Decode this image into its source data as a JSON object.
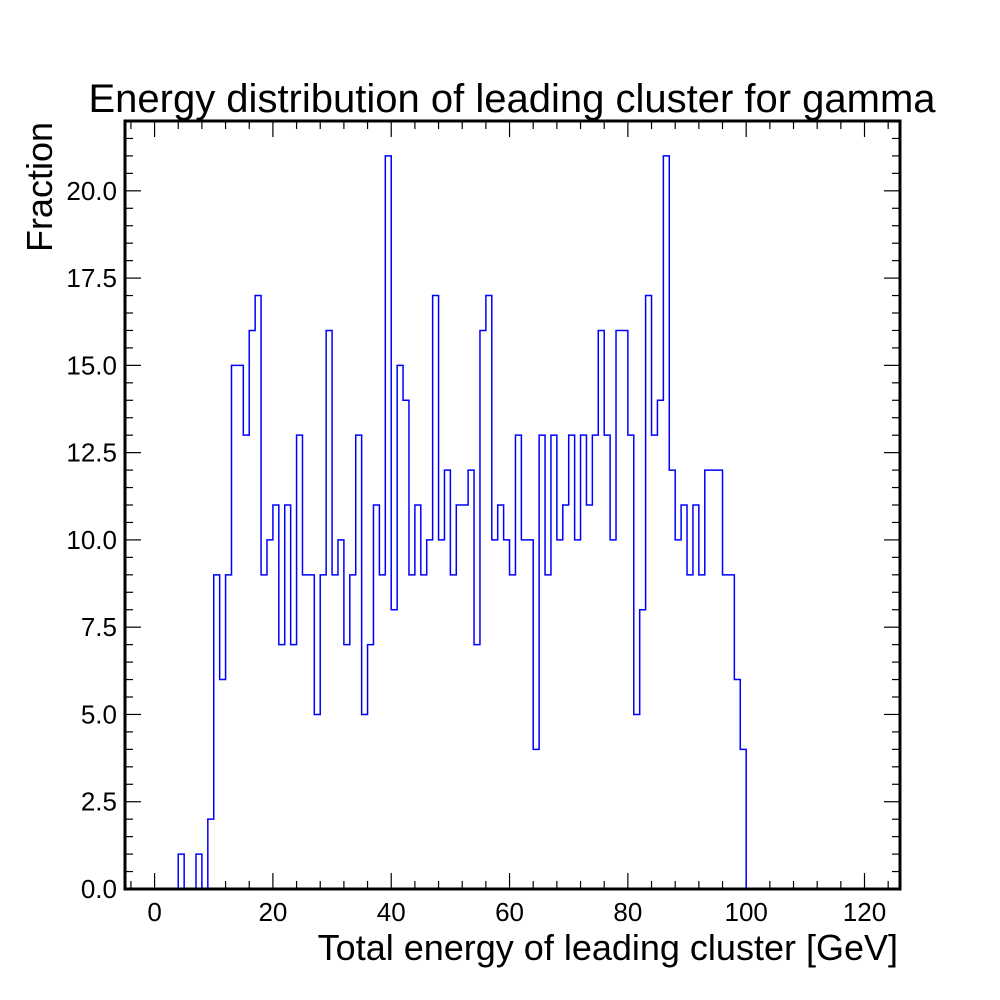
{
  "chart_data": {
    "type": "histogram",
    "title": "Energy distribution of leading cluster for gamma",
    "xlabel": "Total energy of leading cluster [GeV]",
    "ylabel": "Fraction",
    "xlim": [
      -5,
      126
    ],
    "ylim": [
      0,
      22
    ],
    "x_ticks": [
      0,
      20,
      40,
      60,
      80,
      100,
      120
    ],
    "x_tick_labels": [
      "0",
      "20",
      "40",
      "60",
      "80",
      "100",
      "120"
    ],
    "y_ticks": [
      0,
      2.5,
      5,
      7.5,
      10,
      12.5,
      15,
      17.5,
      20
    ],
    "y_tick_labels": [
      "0.0",
      "2.5",
      "5.0",
      "7.5",
      "10.0",
      "12.5",
      "15.0",
      "17.5",
      "20.0"
    ],
    "grid": false,
    "line_color": "#0000ff",
    "bin_width": 1,
    "bin_start": 0,
    "values": [
      0,
      0,
      0,
      0,
      1,
      0,
      0,
      1,
      0,
      2,
      9,
      6,
      9,
      15,
      15,
      13,
      16,
      17,
      9,
      10,
      11,
      7,
      11,
      7,
      13,
      9,
      9,
      5,
      9,
      16,
      9,
      10,
      7,
      9,
      13,
      5,
      7,
      11,
      9,
      21,
      8,
      15,
      14,
      9,
      11,
      9,
      10,
      17,
      10,
      12,
      9,
      11,
      11,
      12,
      7,
      16,
      17,
      10,
      11,
      10,
      9,
      13,
      10,
      10,
      4,
      13,
      9,
      13,
      10,
      11,
      13,
      10,
      13,
      11,
      13,
      16,
      13,
      10,
      16,
      16,
      13,
      5,
      8,
      17,
      13,
      14,
      21,
      12,
      10,
      11,
      9,
      11,
      9,
      12,
      12,
      12,
      9,
      9,
      6,
      4,
      0
    ]
  }
}
